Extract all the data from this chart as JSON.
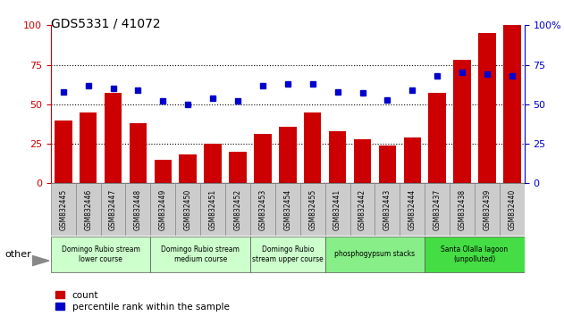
{
  "title": "GDS5331 / 41072",
  "samples": [
    "GSM832445",
    "GSM832446",
    "GSM832447",
    "GSM832448",
    "GSM832449",
    "GSM832450",
    "GSM832451",
    "GSM832452",
    "GSM832453",
    "GSM832454",
    "GSM832455",
    "GSM832441",
    "GSM832442",
    "GSM832443",
    "GSM832444",
    "GSM832437",
    "GSM832438",
    "GSM832439",
    "GSM832440"
  ],
  "counts": [
    40,
    45,
    57,
    38,
    15,
    18,
    25,
    20,
    31,
    36,
    45,
    33,
    28,
    24,
    29,
    57,
    78,
    95,
    100
  ],
  "percentiles": [
    58,
    62,
    60,
    59,
    52,
    50,
    54,
    52,
    62,
    63,
    63,
    58,
    57,
    53,
    59,
    68,
    70,
    69,
    68
  ],
  "bar_color": "#cc0000",
  "dot_color": "#0000cc",
  "ylim_left": [
    0,
    100
  ],
  "ylim_right": [
    0,
    100
  ],
  "yticks": [
    0,
    25,
    50,
    75,
    100
  ],
  "groups": [
    {
      "label": "Domingo Rubio stream\nlower course",
      "start": 0,
      "end": 4,
      "color": "#ccffcc"
    },
    {
      "label": "Domingo Rubio stream\nmedium course",
      "start": 4,
      "end": 8,
      "color": "#ccffcc"
    },
    {
      "label": "Domingo Rubio\nstream upper course",
      "start": 8,
      "end": 11,
      "color": "#ccffcc"
    },
    {
      "label": "phosphogypsum stacks",
      "start": 11,
      "end": 15,
      "color": "#88ee88"
    },
    {
      "label": "Santa Olalla lagoon\n(unpolluted)",
      "start": 15,
      "end": 19,
      "color": "#44dd44"
    }
  ],
  "legend_count_label": "count",
  "legend_pct_label": "percentile rank within the sample",
  "other_label": "other",
  "title_fontsize": 10,
  "axis_label_color_left": "#cc0000",
  "axis_label_color_right": "#0000cc",
  "tick_bg_color": "#cccccc",
  "tick_border_color": "#888888"
}
